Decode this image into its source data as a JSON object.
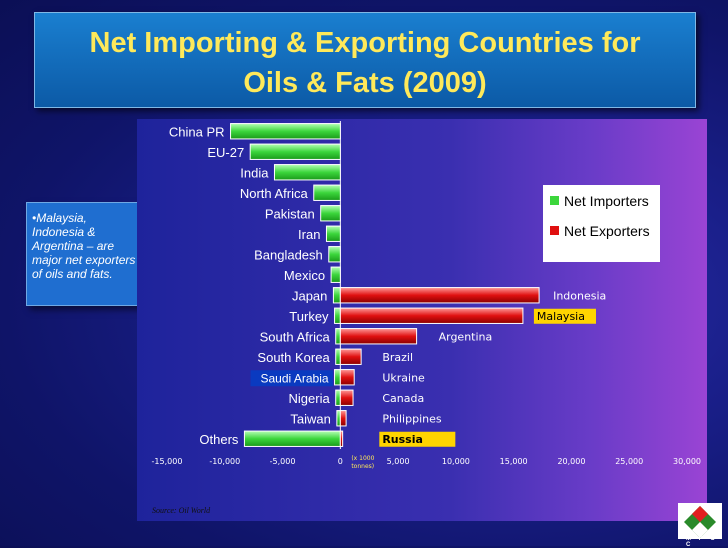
{
  "title": "Net Importing & Exporting Countries for\nOils & Fats (2009)",
  "note": "•Malaysia, Indonesia & Argentina – are major net exporters of oils and fats.",
  "source": "Source: Oil World",
  "logo_text": "M P O C",
  "unit_label": "(x 1000\ntonnes)",
  "colors": {
    "importer": "#3cd63c",
    "exporter": "#e01010",
    "highlight_box": "#ffd400"
  },
  "chart_data": {
    "type": "bar",
    "orientation": "horizontal",
    "title": "",
    "xlabel": "",
    "ylabel": "",
    "xlim": [
      -15000,
      30000
    ],
    "x_ticks": [
      "-15,000",
      "-10,000",
      "-5,000",
      "0",
      "5,000",
      "10,000",
      "15,000",
      "20,000",
      "25,000",
      "30,000"
    ],
    "x_tick_values": [
      -15000,
      -10000,
      -5000,
      0,
      5000,
      10000,
      15000,
      20000,
      25000,
      30000
    ],
    "legend": {
      "position": "top-right",
      "entries": [
        "Net Importers",
        "Net Exporters"
      ]
    },
    "importers": {
      "name": "Net Importers",
      "labels": [
        "China PR",
        "EU-27",
        "India",
        "North Africa",
        "Pakistan",
        "Iran",
        "Bangladesh",
        "Mexico",
        "Japan",
        "Turkey",
        "South Africa",
        "South Korea",
        "Saudi Arabia",
        "Nigeria",
        "Taiwan",
        "Others"
      ],
      "values": [
        -9500,
        -7800,
        -5700,
        -2300,
        -1700,
        -1200,
        -1000,
        -800,
        -600,
        -500,
        -400,
        -400,
        -500,
        -400,
        -300,
        -8300
      ]
    },
    "exporters": {
      "name": "Net Exporters",
      "labels": [
        "Indonesia",
        "Malaysia",
        "Argentina",
        "Brazil",
        "Ukraine",
        "Canada",
        "Philippines",
        "Russia"
      ],
      "values": [
        17200,
        15800,
        6600,
        1800,
        1200,
        1100,
        500,
        200
      ],
      "highlighted": [
        "Malaysia",
        "Russia"
      ]
    }
  }
}
